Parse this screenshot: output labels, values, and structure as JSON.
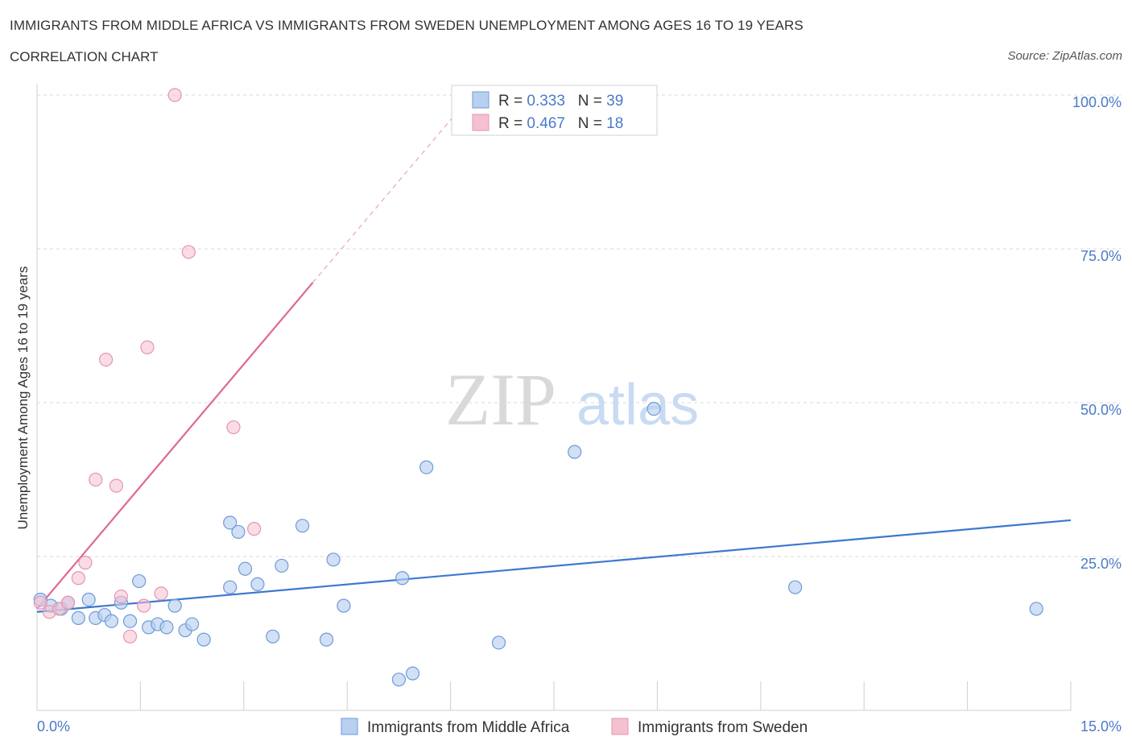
{
  "header": {
    "title": "IMMIGRANTS FROM MIDDLE AFRICA VS IMMIGRANTS FROM SWEDEN UNEMPLOYMENT AMONG AGES 16 TO 19 YEARS",
    "subtitle": "CORRELATION CHART",
    "source": "Source: ZipAtlas.com"
  },
  "watermark": {
    "zip": "ZIP",
    "atlas": "atlas"
  },
  "colors": {
    "blue": "#3b78d0",
    "blue_fill": "#b8d0f0",
    "pink": "#e06890",
    "pink_fill": "#f5c0d0",
    "tick_label": "#4a7ac8",
    "grid": "#d8d8d8"
  },
  "chart_data": {
    "type": "scatter",
    "xlabel": "",
    "ylabel": "Unemployment Among Ages 16 to 19 years",
    "xlim": [
      0,
      15
    ],
    "ylim": [
      0,
      100
    ],
    "x_tick_labels": [
      "0.0%",
      "15.0%"
    ],
    "y_ticks": [
      25,
      50,
      75,
      100
    ],
    "y_tick_labels": [
      "25.0%",
      "50.0%",
      "75.0%",
      "100.0%"
    ],
    "grid": true,
    "legend_position": "top-center",
    "series": [
      {
        "name": "Immigrants from Middle Africa",
        "color": "#3b78d0",
        "R": "0.333",
        "N": "39",
        "trend": {
          "x": [
            0,
            15
          ],
          "y": [
            16.0,
            30.9
          ]
        },
        "points": [
          [
            0.05,
            18.0
          ],
          [
            0.2,
            17.0
          ],
          [
            0.35,
            16.5
          ],
          [
            0.45,
            17.5
          ],
          [
            0.6,
            15.0
          ],
          [
            0.75,
            18.0
          ],
          [
            0.85,
            15.0
          ],
          [
            0.98,
            15.5
          ],
          [
            1.08,
            14.5
          ],
          [
            1.22,
            17.5
          ],
          [
            1.35,
            14.5
          ],
          [
            1.48,
            21.0
          ],
          [
            1.62,
            13.5
          ],
          [
            1.75,
            14.0
          ],
          [
            1.88,
            13.5
          ],
          [
            2.0,
            17.0
          ],
          [
            2.15,
            13.0
          ],
          [
            2.25,
            14.0
          ],
          [
            2.42,
            11.5
          ],
          [
            2.8,
            20.0
          ],
          [
            2.8,
            30.5
          ],
          [
            2.92,
            29.0
          ],
          [
            3.02,
            23.0
          ],
          [
            3.2,
            20.5
          ],
          [
            3.42,
            12.0
          ],
          [
            3.55,
            23.5
          ],
          [
            3.85,
            30.0
          ],
          [
            4.2,
            11.5
          ],
          [
            4.3,
            24.5
          ],
          [
            4.45,
            17.0
          ],
          [
            5.25,
            5.0
          ],
          [
            5.3,
            21.5
          ],
          [
            5.45,
            6.0
          ],
          [
            5.65,
            39.5
          ],
          [
            6.7,
            11.0
          ],
          [
            7.8,
            42.0
          ],
          [
            8.95,
            49.0
          ],
          [
            11.0,
            20.0
          ],
          [
            14.5,
            16.5
          ]
        ]
      },
      {
        "name": "Immigrants from Sweden",
        "color": "#e06890",
        "R": "0.467",
        "N": "18",
        "trend": {
          "x": [
            0,
            4.0
          ],
          "y": [
            16.5,
            69.5
          ]
        },
        "trend_ext": {
          "x": [
            4.0,
            15
          ],
          "y": [
            69.5,
            215
          ]
        },
        "points": [
          [
            0.05,
            17.5
          ],
          [
            0.18,
            16.0
          ],
          [
            0.32,
            16.5
          ],
          [
            0.45,
            17.5
          ],
          [
            0.6,
            21.5
          ],
          [
            0.7,
            24.0
          ],
          [
            0.85,
            37.5
          ],
          [
            1.0,
            57.0
          ],
          [
            1.15,
            36.5
          ],
          [
            1.22,
            18.5
          ],
          [
            1.35,
            12.0
          ],
          [
            1.55,
            17.0
          ],
          [
            1.6,
            59.0
          ],
          [
            1.8,
            19.0
          ],
          [
            2.0,
            100.0
          ],
          [
            2.2,
            74.5
          ],
          [
            2.85,
            46.0
          ],
          [
            3.15,
            29.5
          ]
        ]
      }
    ]
  }
}
